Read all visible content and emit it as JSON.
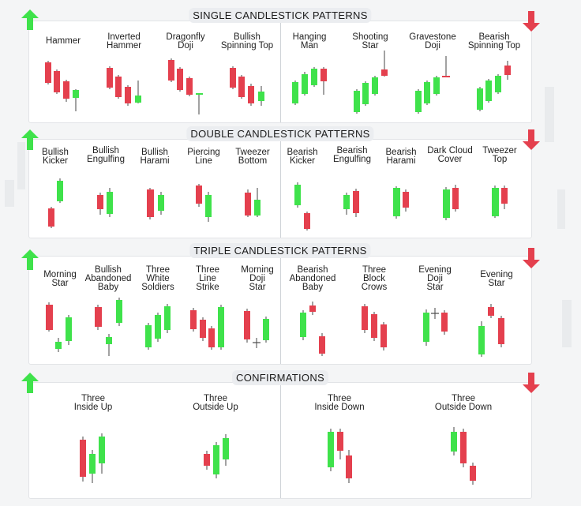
{
  "colors": {
    "bull": "#3fe24b",
    "bear": "#e4404e",
    "doji": "#4a4a4a",
    "up_arrow": "#3fe24b",
    "down_arrow": "#e4404e"
  },
  "sections": [
    {
      "title": "SINGLE CANDLESTICK PATTERNS",
      "bullish": [
        {
          "name": "Hammer",
          "candles": [
            "bear",
            "bear",
            "bear",
            "bull"
          ]
        },
        {
          "name": "Inverted\nHammer",
          "candles": [
            "bear",
            "bear",
            "bear",
            "bull"
          ]
        },
        {
          "name": "Dragonfly\nDoji",
          "candles": [
            "bear",
            "bear",
            "bear",
            "doji"
          ]
        },
        {
          "name": "Bullish\nSpinning Top",
          "candles": [
            "bear",
            "bear",
            "bear",
            "bull"
          ]
        }
      ],
      "bearish": [
        {
          "name": "Hanging\nMan",
          "candles": [
            "bull",
            "bull",
            "bull",
            "bear"
          ]
        },
        {
          "name": "Shooting\nStar",
          "candles": [
            "bull",
            "bull",
            "bull",
            "bear"
          ]
        },
        {
          "name": "Gravestone\nDoji",
          "candles": [
            "bull",
            "bull",
            "bull",
            "doji"
          ]
        },
        {
          "name": "Bearish\nSpinning Top",
          "candles": [
            "bull",
            "bull",
            "bull",
            "bear"
          ]
        }
      ]
    },
    {
      "title": "DOUBLE CANDLESTICK PATTERNS",
      "bullish": [
        {
          "name": "Bullish\nKicker",
          "candles": [
            "bear",
            "bull"
          ]
        },
        {
          "name": "Bullish\nEngulfing",
          "candles": [
            "bear",
            "bull"
          ]
        },
        {
          "name": "Bullish\nHarami",
          "candles": [
            "bear",
            "bull"
          ]
        },
        {
          "name": "Piercing\nLine",
          "candles": [
            "bear",
            "bull"
          ]
        },
        {
          "name": "Tweezer\nBottom",
          "candles": [
            "bear",
            "bull"
          ]
        }
      ],
      "bearish": [
        {
          "name": "Bearish\nKicker",
          "candles": [
            "bull",
            "bear"
          ]
        },
        {
          "name": "Bearish\nEngulfing",
          "candles": [
            "bull",
            "bear"
          ]
        },
        {
          "name": "Bearish\nHarami",
          "candles": [
            "bull",
            "bear"
          ]
        },
        {
          "name": "Dark Cloud\nCover",
          "candles": [
            "bull",
            "bear"
          ]
        },
        {
          "name": "Tweezer\nTop",
          "candles": [
            "bull",
            "bear"
          ]
        }
      ]
    },
    {
      "title": "TRIPLE CANDLESTICK PATTERNS",
      "bullish": [
        {
          "name": "Morning\nStar",
          "candles": [
            "bear",
            "bull",
            "bull"
          ]
        },
        {
          "name": "Bullish\nAbandoned\nBaby",
          "candles": [
            "bear",
            "bull",
            "bull"
          ]
        },
        {
          "name": "Three\nWhite\nSoldiers",
          "candles": [
            "bull",
            "bull",
            "bull"
          ]
        },
        {
          "name": "Three\nLine\nStrike",
          "candles": [
            "bear",
            "bear",
            "bear",
            "bull"
          ]
        },
        {
          "name": "Morning\nDoji\nStar",
          "candles": [
            "bear",
            "doji",
            "bull"
          ]
        }
      ],
      "bearish": [
        {
          "name": "Bearish\nAbandoned\nBaby",
          "candles": [
            "bull",
            "bear",
            "bear"
          ]
        },
        {
          "name": "Three\nBlock\nCrows",
          "candles": [
            "bear",
            "bear",
            "bear"
          ]
        },
        {
          "name": "Evening\nDoji\nStar",
          "candles": [
            "bull",
            "doji",
            "bear"
          ]
        },
        {
          "name": "Evening\nStar",
          "candles": [
            "bull",
            "bear",
            "bear"
          ]
        }
      ]
    },
    {
      "title": "CONFIRMATIONS",
      "bullish": [
        {
          "name": "Three\nInside Up",
          "candles": [
            "bear",
            "bull",
            "bull"
          ]
        },
        {
          "name": "Three\nOutside Up",
          "candles": [
            "bear",
            "bull",
            "bull"
          ]
        }
      ],
      "bearish": [
        {
          "name": "Three\nInside Down",
          "candles": [
            "bull",
            "bear",
            "bear"
          ]
        },
        {
          "name": "Three\nOutside Down",
          "candles": [
            "bull",
            "bear",
            "bear"
          ]
        }
      ]
    }
  ]
}
